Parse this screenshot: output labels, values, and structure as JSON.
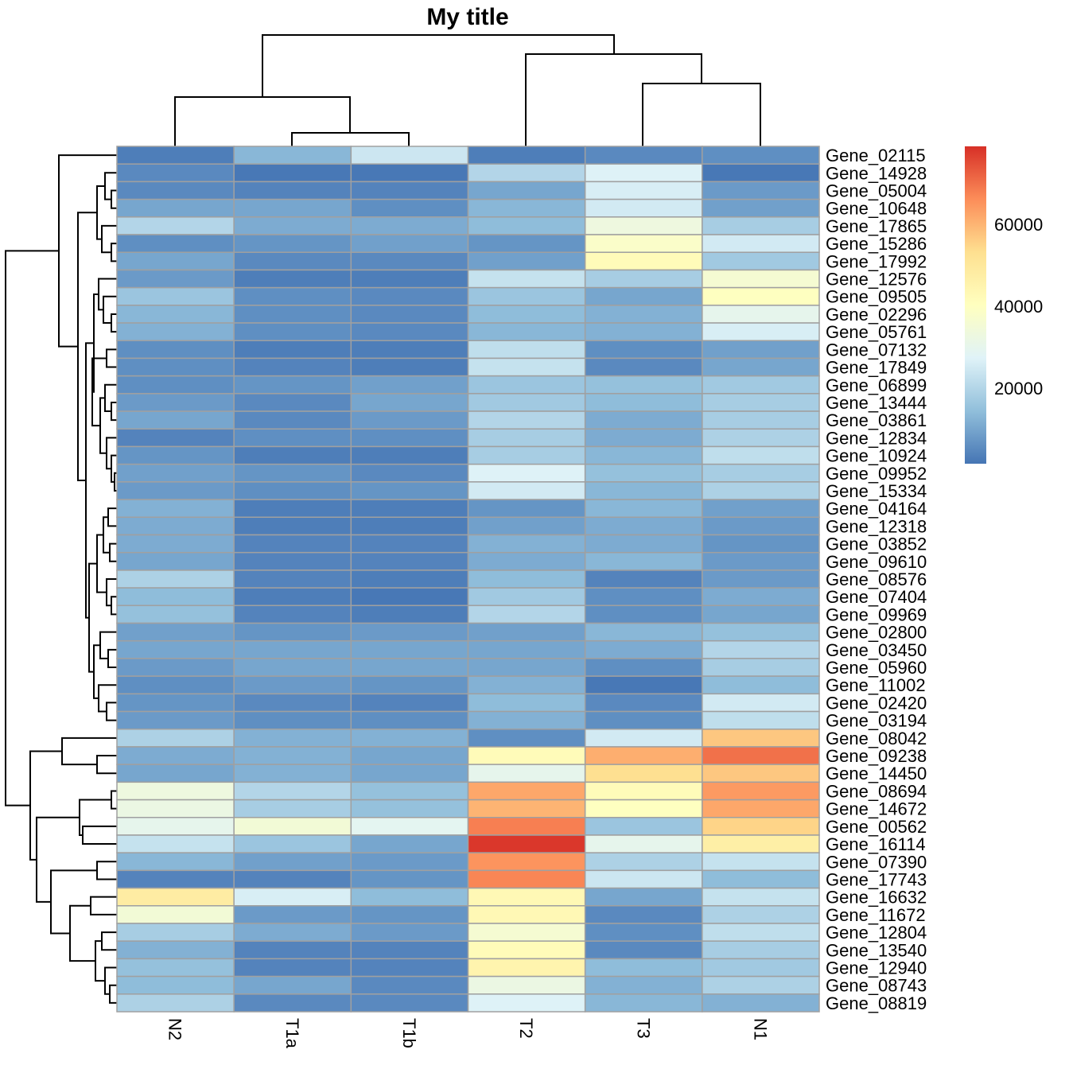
{
  "chart_data": {
    "type": "heatmap",
    "title": "My title",
    "columns": [
      "N2",
      "T1a",
      "T1b",
      "T2",
      "T3",
      "N1"
    ],
    "rows": [
      "Gene_02115",
      "Gene_14928",
      "Gene_05004",
      "Gene_10648",
      "Gene_17865",
      "Gene_15286",
      "Gene_17992",
      "Gene_12576",
      "Gene_09505",
      "Gene_02296",
      "Gene_05761",
      "Gene_07132",
      "Gene_17849",
      "Gene_06899",
      "Gene_13444",
      "Gene_03861",
      "Gene_12834",
      "Gene_10924",
      "Gene_09952",
      "Gene_15334",
      "Gene_04164",
      "Gene_12318",
      "Gene_03852",
      "Gene_09610",
      "Gene_08576",
      "Gene_07404",
      "Gene_09969",
      "Gene_02800",
      "Gene_03450",
      "Gene_05960",
      "Gene_11002",
      "Gene_02420",
      "Gene_03194",
      "Gene_08042",
      "Gene_09238",
      "Gene_14450",
      "Gene_08694",
      "Gene_14672",
      "Gene_00562",
      "Gene_16114",
      "Gene_07390",
      "Gene_17743",
      "Gene_16632",
      "Gene_11672",
      "Gene_12804",
      "Gene_13540",
      "Gene_12940",
      "Gene_08743",
      "Gene_08819"
    ],
    "values": [
      [
        3000,
        13000,
        24000,
        3000,
        5000,
        6000
      ],
      [
        5000,
        2000,
        2000,
        20000,
        27000,
        2000
      ],
      [
        5000,
        4000,
        4000,
        10000,
        26000,
        8000
      ],
      [
        10000,
        10000,
        6000,
        13000,
        25000,
        9000
      ],
      [
        20000,
        11000,
        11000,
        14000,
        33000,
        18000
      ],
      [
        6000,
        7000,
        9000,
        7000,
        38000,
        25000
      ],
      [
        10000,
        5000,
        5000,
        9000,
        42000,
        17000
      ],
      [
        8000,
        3000,
        3000,
        23000,
        18000,
        36000
      ],
      [
        16000,
        6000,
        5000,
        16000,
        10000,
        40000
      ],
      [
        13000,
        6000,
        5000,
        14000,
        12000,
        30000
      ],
      [
        12000,
        6000,
        5000,
        13000,
        12000,
        26000
      ],
      [
        6000,
        3000,
        3000,
        22000,
        6000,
        9000
      ],
      [
        6000,
        4000,
        3000,
        23000,
        5000,
        10000
      ],
      [
        6000,
        7000,
        9000,
        16000,
        15000,
        17000
      ],
      [
        8000,
        5000,
        10000,
        17000,
        14000,
        18000
      ],
      [
        10000,
        5000,
        8000,
        20000,
        11000,
        18000
      ],
      [
        4000,
        6000,
        6000,
        18000,
        11000,
        19000
      ],
      [
        7000,
        3000,
        3000,
        18000,
        13000,
        22000
      ],
      [
        9000,
        7000,
        5000,
        27000,
        15000,
        18000
      ],
      [
        8000,
        6000,
        7000,
        25000,
        13000,
        19000
      ],
      [
        12000,
        3000,
        3000,
        7000,
        13000,
        9000
      ],
      [
        11000,
        3000,
        3000,
        9000,
        11000,
        8000
      ],
      [
        11000,
        4000,
        4000,
        12000,
        11000,
        7000
      ],
      [
        10000,
        4000,
        4000,
        11000,
        13000,
        8000
      ],
      [
        19000,
        4000,
        3000,
        14000,
        4000,
        8000
      ],
      [
        14000,
        3000,
        2000,
        17000,
        6000,
        11000
      ],
      [
        15000,
        4000,
        3000,
        20000,
        6000,
        10000
      ],
      [
        9000,
        7000,
        8000,
        9000,
        13000,
        15000
      ],
      [
        10000,
        10000,
        10000,
        10000,
        11000,
        20000
      ],
      [
        8000,
        10000,
        10000,
        10000,
        6000,
        18000
      ],
      [
        6000,
        8000,
        7000,
        12000,
        2000,
        14000
      ],
      [
        7000,
        5000,
        4000,
        14000,
        5000,
        25000
      ],
      [
        8000,
        6000,
        6000,
        12000,
        6000,
        22000
      ],
      [
        19000,
        12000,
        12000,
        6000,
        25000,
        57000
      ],
      [
        11000,
        12000,
        10000,
        42000,
        61000,
        70000
      ],
      [
        10000,
        12000,
        10000,
        30000,
        53000,
        57000
      ],
      [
        33000,
        20000,
        15000,
        62000,
        42000,
        64000
      ],
      [
        32000,
        18000,
        15000,
        60000,
        40000,
        62000
      ],
      [
        30000,
        35000,
        29000,
        68000,
        16000,
        55000
      ],
      [
        23000,
        16000,
        10000,
        78000,
        30000,
        47000
      ],
      [
        13000,
        9000,
        8000,
        65000,
        19000,
        23000
      ],
      [
        4000,
        4000,
        7000,
        67000,
        24000,
        14000
      ],
      [
        48000,
        26000,
        14000,
        43000,
        10000,
        23000
      ],
      [
        35000,
        8000,
        7000,
        43000,
        5000,
        19000
      ],
      [
        18000,
        11000,
        8000,
        36000,
        6000,
        22000
      ],
      [
        12000,
        4000,
        4000,
        42000,
        5000,
        18000
      ],
      [
        15000,
        4000,
        4000,
        45000,
        14000,
        17000
      ],
      [
        14000,
        10000,
        5000,
        32000,
        12000,
        19000
      ],
      [
        19000,
        5000,
        5000,
        27000,
        13000,
        12000
      ]
    ],
    "color_range": [
      1500,
      79000
    ],
    "palette": [
      "#4575B4",
      "#91BFDB",
      "#E0F3F8",
      "#FFFFBF",
      "#FEE090",
      "#FC8D59",
      "#D73027"
    ],
    "cell_border_color": "#A0A0A0",
    "legend_ticks": [
      20000,
      40000,
      60000
    ],
    "legend_tick_labels": [
      "20000",
      "40000",
      "60000"
    ],
    "legend_placement": "right",
    "row_dendrogram": true,
    "column_dendrogram": true
  }
}
